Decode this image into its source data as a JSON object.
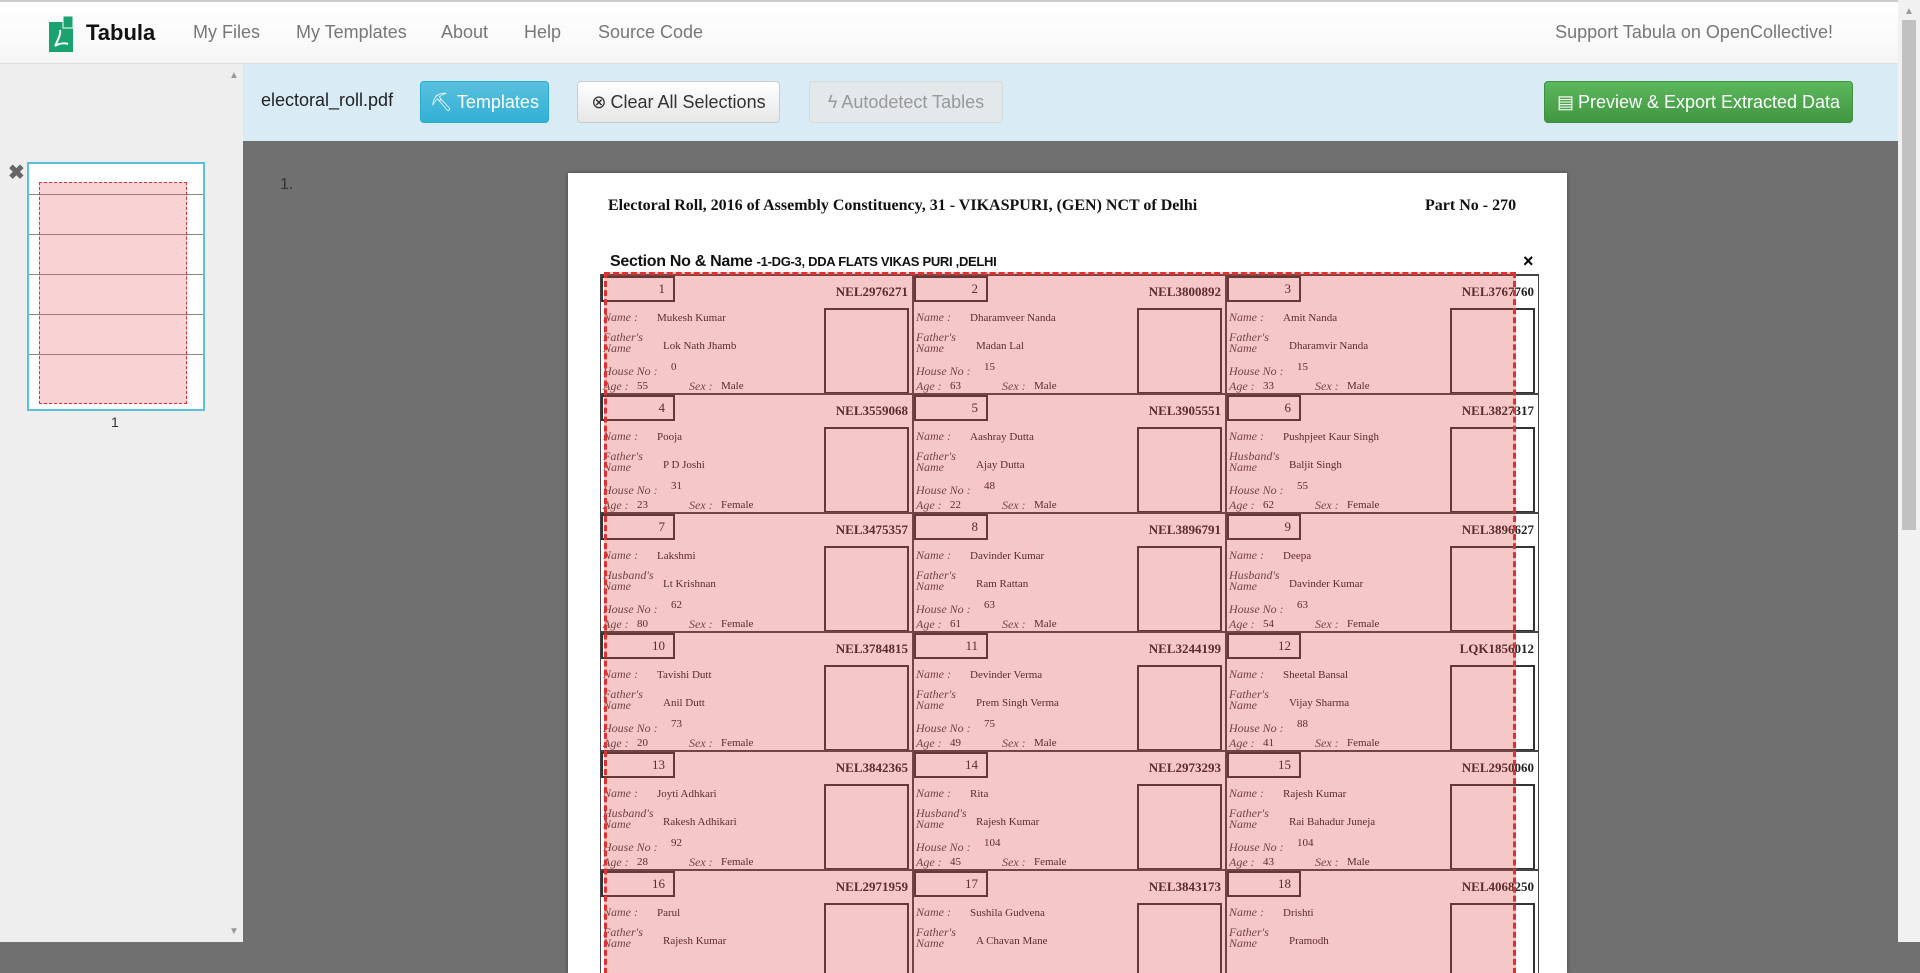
{
  "nav": {
    "brand": "Tabula",
    "items": [
      "My Files",
      "My Templates",
      "About",
      "Help",
      "Source Code"
    ],
    "support": "Support Tabula on OpenCollective!"
  },
  "sidebar": {
    "page_label": "1"
  },
  "toolbar": {
    "filename": "electoral_roll.pdf",
    "templates": "Templates",
    "clear": "Clear All Selections",
    "autodetect": "Autodetect Tables",
    "preview": "Preview & Export Extracted Data"
  },
  "colors": {
    "templates_btn": "#5bc0de",
    "preview_btn": "#5cb85c",
    "selection": "#e03030",
    "toolbar_bg": "#d9ebf5"
  },
  "page_number": "1.",
  "doc": {
    "title": "Electoral Roll, 2016 of Assembly Constituency, 31 - VIKASPURI,  (GEN) NCT of Delhi",
    "part_no": "Part No - 270",
    "section_label": "Section No & Name ",
    "section_value": "-1-DG-3, DDA FLATS VIKAS PURI ,DELHI",
    "close": "×",
    "labels": {
      "name": "Name :",
      "house": "House No :",
      "age": "Age :",
      "sex": "Sex :"
    },
    "entries": [
      {
        "no": "1",
        "id": "NEL2976271",
        "name": "Mukesh Kumar",
        "rel": "Father's Name",
        "relname": "Lok Nath Jhamb",
        "house": "0",
        "age": "55",
        "sex": "Male"
      },
      {
        "no": "2",
        "id": "NEL3800892",
        "name": "Dharamveer Nanda",
        "rel": "Father's Name",
        "relname": "Madan Lal",
        "house": "15",
        "age": "63",
        "sex": "Male"
      },
      {
        "no": "3",
        "id": "NEL3767760",
        "name": "Amit Nanda",
        "rel": "Father's Name",
        "relname": "Dharamvir Nanda",
        "house": "15",
        "age": "33",
        "sex": "Male"
      },
      {
        "no": "4",
        "id": "NEL3559068",
        "name": "Pooja",
        "rel": "Father's Name",
        "relname": "P D Joshi",
        "house": "31",
        "age": "23",
        "sex": "Female"
      },
      {
        "no": "5",
        "id": "NEL3905551",
        "name": "Aashray Dutta",
        "rel": "Father's Name",
        "relname": "Ajay Dutta",
        "house": "48",
        "age": "22",
        "sex": "Male"
      },
      {
        "no": "6",
        "id": "NEL3827317",
        "name": "Pushpjeet Kaur Singh",
        "rel": "Husband's Name",
        "relname": "Baljit Singh",
        "house": "55",
        "age": "62",
        "sex": "Female"
      },
      {
        "no": "7",
        "id": "NEL3475357",
        "name": "Lakshmi",
        "rel": "Husband's Name",
        "relname": "Lt Krishnan",
        "house": "62",
        "age": "80",
        "sex": "Female"
      },
      {
        "no": "8",
        "id": "NEL3896791",
        "name": "Davinder Kumar",
        "rel": "Father's Name",
        "relname": "Ram Rattan",
        "house": "63",
        "age": "61",
        "sex": "Male"
      },
      {
        "no": "9",
        "id": "NEL3896627",
        "name": "Deepa",
        "rel": "Husband's Name",
        "relname": "Davinder Kumar",
        "house": "63",
        "age": "54",
        "sex": "Female"
      },
      {
        "no": "10",
        "id": "NEL3784815",
        "name": "Tavishi Dutt",
        "rel": "Father's Name",
        "relname": "Anil Dutt",
        "house": "73",
        "age": "20",
        "sex": "Female"
      },
      {
        "no": "11",
        "id": "NEL3244199",
        "name": "Devinder Verma",
        "rel": "Father's Name",
        "relname": "Prem Singh Verma",
        "house": "75",
        "age": "49",
        "sex": "Male"
      },
      {
        "no": "12",
        "id": "LQK1856012",
        "name": "Sheetal Bansal",
        "rel": "Father's Name",
        "relname": "Vijay Sharma",
        "house": "88",
        "age": "41",
        "sex": "Female"
      },
      {
        "no": "13",
        "id": "NEL3842365",
        "name": "Joyti Adhkari",
        "rel": "Husband's Name",
        "relname": "Rakesh Adhikari",
        "house": "92",
        "age": "28",
        "sex": "Female"
      },
      {
        "no": "14",
        "id": "NEL2973293",
        "name": "Rita",
        "rel": "Husband's Name",
        "relname": "Rajesh Kumar",
        "house": "104",
        "age": "45",
        "sex": "Female"
      },
      {
        "no": "15",
        "id": "NEL2950060",
        "name": "Rajesh Kumar",
        "rel": "Father's Name",
        "relname": "Rai Bahadur Juneja",
        "house": "104",
        "age": "43",
        "sex": "Male"
      },
      {
        "no": "16",
        "id": "NEL2971959",
        "name": "Parul",
        "rel": "Father's Name",
        "relname": "Rajesh Kumar",
        "house": "",
        "age": "",
        "sex": ""
      },
      {
        "no": "17",
        "id": "NEL3843173",
        "name": "Sushila Gudvena",
        "rel": "Father's Name",
        "relname": "A Chavan Mane",
        "house": "",
        "age": "",
        "sex": ""
      },
      {
        "no": "18",
        "id": "NEL4068250",
        "name": "Drishti",
        "rel": "Father's Name",
        "relname": "Pramodh",
        "house": "",
        "age": "",
        "sex": ""
      }
    ]
  }
}
